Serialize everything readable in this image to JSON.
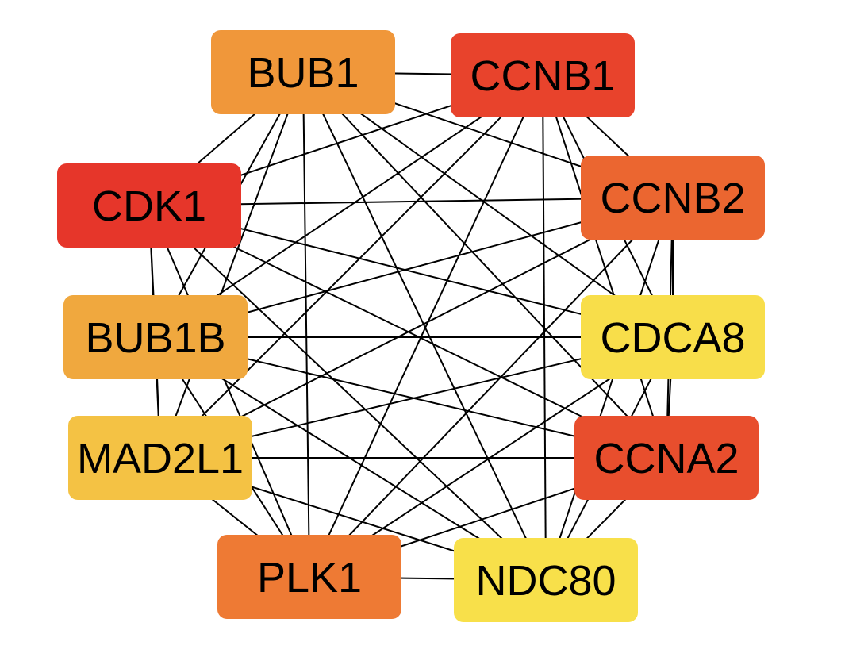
{
  "network": {
    "nodes": [
      {
        "id": "BUB1",
        "label": "BUB1",
        "color": "#F0973A"
      },
      {
        "id": "CCNB1",
        "label": "CCNB1",
        "color": "#E8432C"
      },
      {
        "id": "CDK1",
        "label": "CDK1",
        "color": "#E6362A"
      },
      {
        "id": "CCNB2",
        "label": "CCNB2",
        "color": "#EB6630"
      },
      {
        "id": "BUB1B",
        "label": "BUB1B",
        "color": "#F0A83E"
      },
      {
        "id": "CDCA8",
        "label": "CDCA8",
        "color": "#F8DE4A"
      },
      {
        "id": "MAD2L1",
        "label": "MAD2L1",
        "color": "#F4C244"
      },
      {
        "id": "CCNA2",
        "label": "CCNA2",
        "color": "#E84E2D"
      },
      {
        "id": "PLK1",
        "label": "PLK1",
        "color": "#EE7A34"
      },
      {
        "id": "NDC80",
        "label": "NDC80",
        "color": "#F8E04A"
      }
    ],
    "edge_color": "#000000",
    "edges": "all-pairs"
  }
}
